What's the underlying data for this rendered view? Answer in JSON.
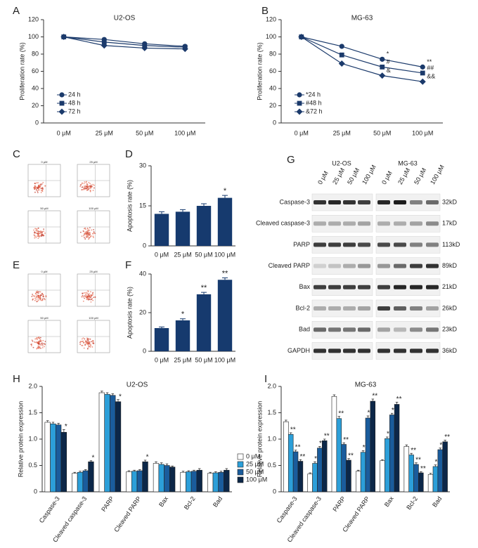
{
  "panel_letters": [
    "A",
    "B",
    "C",
    "D",
    "E",
    "F",
    "G",
    "H",
    "I"
  ],
  "flow": {
    "labels": [
      "0 μM",
      "25 μM",
      "50 μM",
      "100 μM"
    ]
  },
  "blot": {
    "groups": [
      "U2-OS",
      "MG-63"
    ],
    "lanes": [
      "0 μM",
      "25 μM",
      "50 μM",
      "100 μM"
    ],
    "rows": [
      {
        "protein": "Caspase-3",
        "size": "32kD"
      },
      {
        "protein": "Cleaved caspase-3",
        "size": "17kD"
      },
      {
        "protein": "PARP",
        "size": "113kD"
      },
      {
        "protein": "Cleaved PARP",
        "size": "89kD"
      },
      {
        "protein": "Bax",
        "size": "21kD"
      },
      {
        "protein": "Bcl-2",
        "size": "26kD"
      },
      {
        "protein": "Bad",
        "size": "23kD"
      },
      {
        "protein": "GAPDH",
        "size": "36kD"
      }
    ]
  },
  "chart_data": [
    {
      "type": "line",
      "title": "U2-OS",
      "ylabel": "Proliferation rate (%)",
      "categories": [
        "0 μM",
        "25 μM",
        "50 μM",
        "100 μM"
      ],
      "ylim": [
        0,
        120
      ],
      "yticks": [
        0,
        20,
        40,
        60,
        80,
        100,
        120
      ],
      "series": [
        {
          "name": "24 h",
          "color": "#1b3a6b",
          "marker": "circle",
          "values": [
            100,
            97,
            92,
            89
          ]
        },
        {
          "name": "48 h",
          "color": "#1b3a6b",
          "marker": "square",
          "values": [
            100,
            94,
            90,
            88
          ]
        },
        {
          "name": "72 h",
          "color": "#1b3a6b",
          "marker": "diamond",
          "values": [
            100,
            90,
            87,
            86
          ]
        }
      ]
    },
    {
      "type": "line",
      "title": "MG-63",
      "ylabel": "Proliferation rate (%)",
      "categories": [
        "0 μM",
        "25 μM",
        "50 μM",
        "100 μM"
      ],
      "ylim": [
        0,
        120
      ],
      "yticks": [
        0,
        20,
        40,
        60,
        80,
        100,
        120
      ],
      "series": [
        {
          "name": "*24 h",
          "color": "#1b3a6b",
          "marker": "circle",
          "values": [
            100,
            89,
            74,
            65
          ],
          "annotations": [
            null,
            null,
            "*",
            "**"
          ]
        },
        {
          "name": "#48 h",
          "color": "#1b3a6b",
          "marker": "square",
          "values": [
            100,
            79,
            65,
            58
          ],
          "annotations": [
            null,
            null,
            "#",
            "##"
          ]
        },
        {
          "name": "&72 h",
          "color": "#1b3a6b",
          "marker": "diamond",
          "values": [
            100,
            69,
            55,
            48
          ],
          "annotations": [
            null,
            null,
            "&",
            "&&"
          ]
        }
      ]
    },
    {
      "type": "bar",
      "ylabel": "Apoptosis rate (%)",
      "categories": [
        "0 μM",
        "25 μM",
        "50 μM",
        "100 μM"
      ],
      "values": [
        12,
        12.8,
        15,
        18
      ],
      "errors": [
        0.8,
        0.8,
        0.8,
        0.9
      ],
      "annotations": [
        null,
        null,
        null,
        "*"
      ],
      "color": "#163a6e",
      "ylim": [
        0,
        30
      ],
      "yticks": [
        0,
        15,
        30
      ]
    },
    {
      "type": "bar",
      "ylabel": "Apoptosis rate (%)",
      "categories": [
        "0 μM",
        "25 μM",
        "50 μM",
        "100 μM"
      ],
      "values": [
        12,
        16,
        29.5,
        37
      ],
      "errors": [
        0.6,
        0.8,
        1,
        1
      ],
      "annotations": [
        null,
        "*",
        "**",
        "**"
      ],
      "color": "#163a6e",
      "ylim": [
        0,
        40
      ],
      "yticks": [
        0,
        20,
        40
      ]
    },
    {
      "type": "grouped-bar",
      "title": "U2-OS",
      "ylabel": "Relative protein expression",
      "categories": [
        "Caspase-3",
        "Cleaved caspase-3",
        "PARP",
        "Cleaved PARP",
        "Bax",
        "Bcl-2",
        "Bad"
      ],
      "ylim": [
        0,
        2
      ],
      "yticks": [
        0,
        0.5,
        {
          "value": 1,
          "label": "1.0"
        },
        1.5,
        {
          "value": 2,
          "label": "2.0"
        }
      ],
      "legend": "right",
      "series": [
        {
          "name": "0 μM",
          "color": "#ffffff",
          "values": [
            1.32,
            0.35,
            1.88,
            0.38,
            0.54,
            0.37,
            0.35
          ],
          "errors": [
            0.03,
            0.02,
            0.03,
            0.02,
            0.03,
            0.02,
            0.02
          ]
        },
        {
          "name": "25 μM",
          "color": "#2c9fd9",
          "values": [
            1.29,
            0.37,
            1.85,
            0.39,
            0.52,
            0.38,
            0.36
          ],
          "errors": [
            0.03,
            0.02,
            0.03,
            0.02,
            0.03,
            0.02,
            0.02
          ]
        },
        {
          "name": "50 μM",
          "color": "#1a5c9c",
          "values": [
            1.27,
            0.4,
            1.83,
            0.4,
            0.5,
            0.39,
            0.37
          ],
          "errors": [
            0.03,
            0.02,
            0.03,
            0.02,
            0.03,
            0.02,
            0.02
          ]
        },
        {
          "name": "100 μM",
          "color": "#0c2748",
          "values": [
            1.13,
            0.57,
            1.71,
            0.57,
            0.47,
            0.41,
            0.41
          ],
          "errors": [
            0.05,
            0.02,
            0.04,
            0.03,
            0.02,
            0.03,
            0.03
          ],
          "annotations": [
            "*",
            "*",
            "*",
            "*",
            null,
            null,
            null
          ]
        }
      ]
    },
    {
      "type": "grouped-bar",
      "title": "MG-63",
      "ylabel": "Relative protein expression",
      "categories": [
        "Caspase-3",
        "Cleaved caspase-3",
        "PARP",
        "Cleaved PARP",
        "Bax",
        "Bcl-2",
        "Bad"
      ],
      "ylim": [
        0,
        2
      ],
      "yticks": [
        0,
        0.5,
        {
          "value": 1,
          "label": "1.0"
        },
        1.5,
        {
          "value": 2,
          "label": "2.0"
        }
      ],
      "series": [
        {
          "color": "#ffffff",
          "values": [
            1.33,
            0.34,
            1.81,
            0.39,
            0.59,
            0.86,
            0.33
          ],
          "errors": [
            0.03,
            0.02,
            0.03,
            0.02,
            0.02,
            0.03,
            0.02
          ]
        },
        {
          "color": "#2c9fd9",
          "values": [
            1.09,
            0.54,
            1.39,
            0.75,
            1.01,
            0.7,
            0.48
          ],
          "errors": [
            0.03,
            0.03,
            0.04,
            0.03,
            0.03,
            0.03,
            0.03
          ],
          "annotations": [
            "**",
            "**",
            "**",
            "**",
            "**",
            "**",
            "**"
          ]
        },
        {
          "color": "#1a5c9c",
          "values": [
            0.76,
            0.83,
            0.9,
            1.4,
            1.46,
            0.52,
            0.8
          ],
          "errors": [
            0.03,
            0.03,
            0.03,
            0.04,
            0.03,
            0.03,
            0.03
          ],
          "annotations": [
            "**",
            "**",
            "**",
            "**",
            "**",
            "**",
            "**"
          ]
        },
        {
          "color": "#0c2748",
          "values": [
            0.58,
            0.97,
            0.6,
            1.72,
            1.66,
            0.36,
            0.95
          ],
          "errors": [
            0.03,
            0.03,
            0.03,
            0.04,
            0.04,
            0.02,
            0.03
          ],
          "annotations": [
            "**",
            "**",
            "**",
            "**",
            "**",
            "**",
            "**"
          ]
        }
      ]
    }
  ]
}
